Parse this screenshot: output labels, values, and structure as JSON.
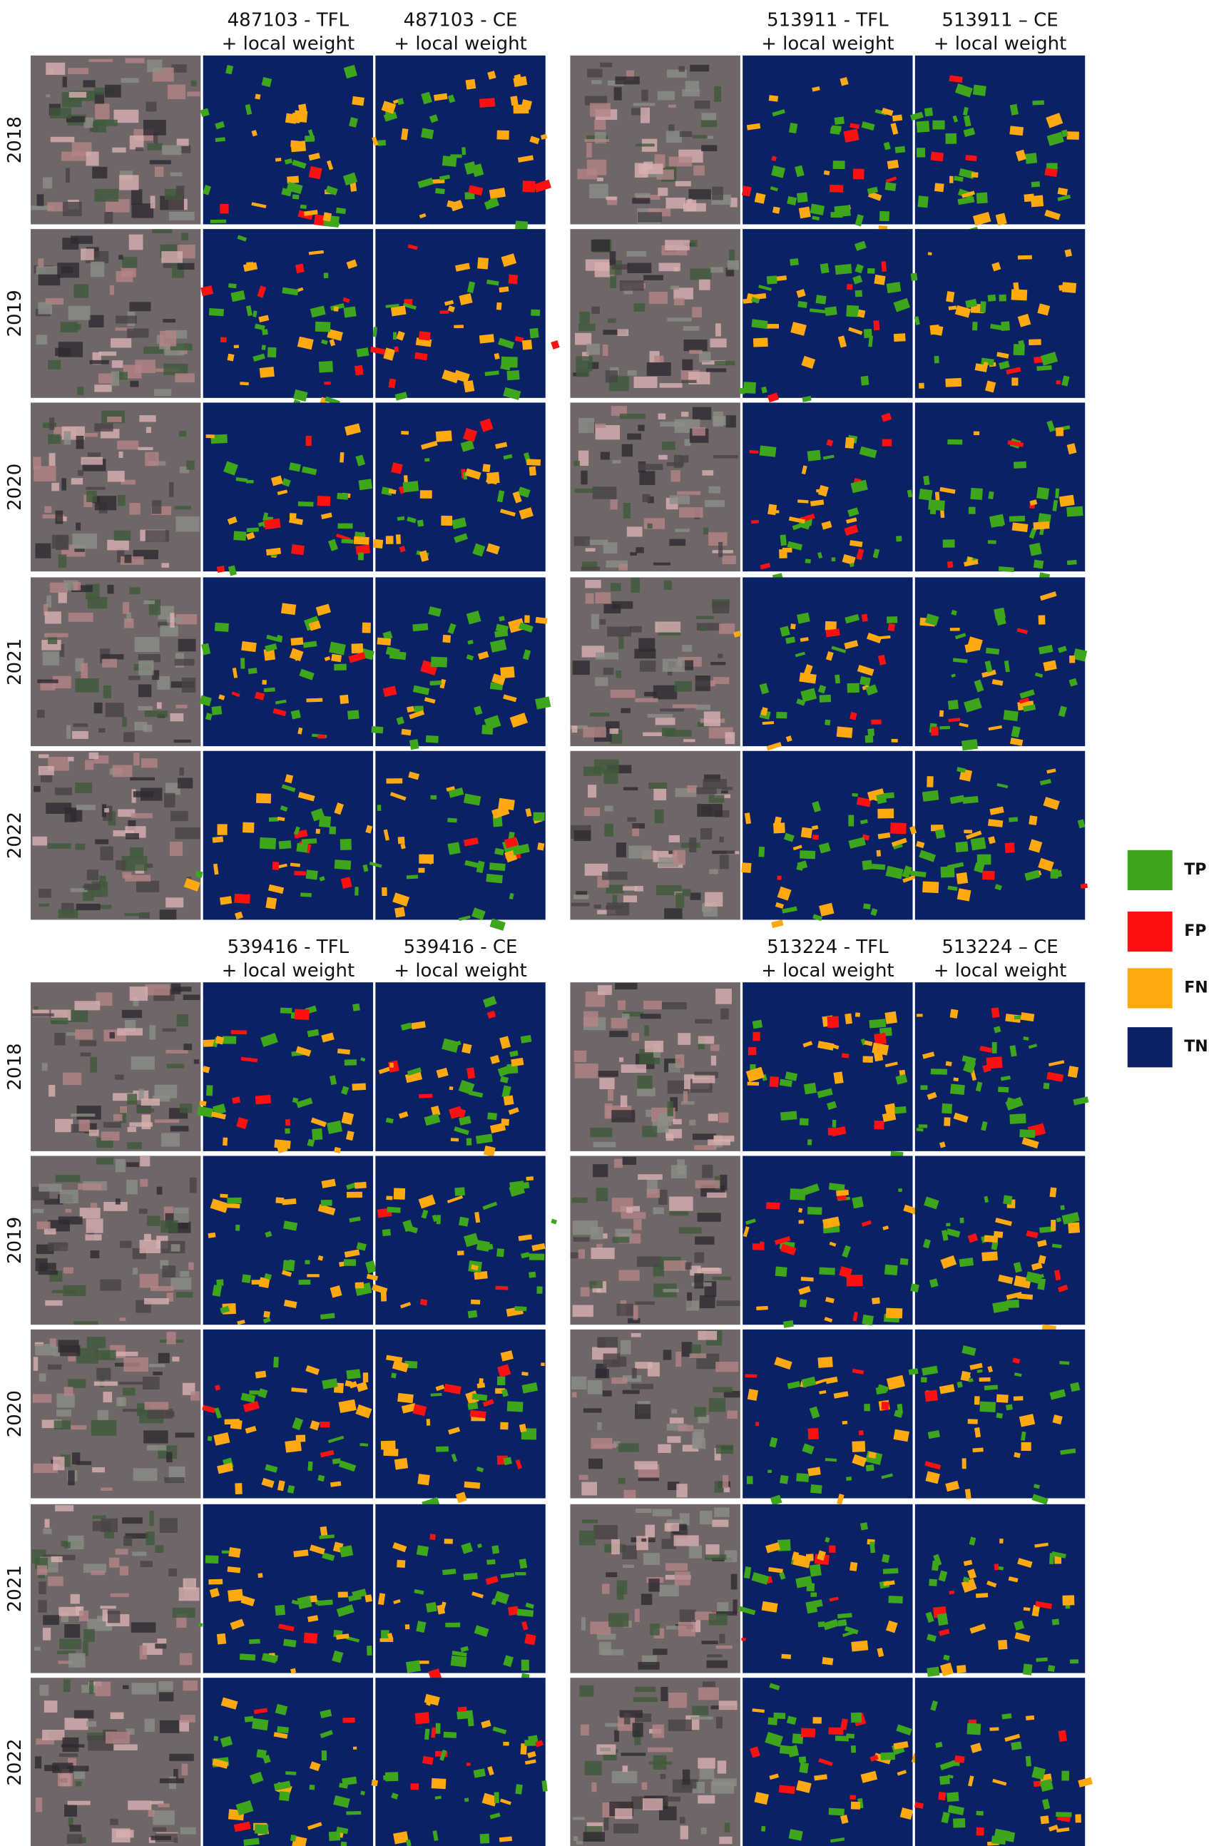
{
  "groups": [
    {
      "headers": [
        [
          "487103 - TFL",
          "+ local weight"
        ],
        [
          "487103 - CE",
          "+ local weight"
        ]
      ],
      "years": [
        "2018",
        "2019",
        "2020",
        "2021",
        "2022"
      ]
    },
    {
      "headers": [
        [
          "513911 - TFL",
          "+ local weight"
        ],
        [
          "513911 – CE",
          "+ local weight"
        ]
      ],
      "years": []
    },
    {
      "headers": [
        [
          "539416 - TFL",
          "+ local weight"
        ],
        [
          "539416 - CE",
          "+ local weight"
        ]
      ],
      "years": [
        "2018",
        "2019",
        "2020",
        "2021",
        "2022"
      ]
    },
    {
      "headers": [
        [
          "513224 - TFL",
          "+ local weight"
        ],
        [
          "513224 – CE",
          "+ local weight"
        ]
      ],
      "years": []
    }
  ],
  "legend": [
    {
      "label": "TP",
      "color": "#3ea61a"
    },
    {
      "label": "FP",
      "color": "#ff1010"
    },
    {
      "label": "FN",
      "color": "#ffa80f"
    },
    {
      "label": "TN",
      "color": "#0b2166"
    }
  ]
}
